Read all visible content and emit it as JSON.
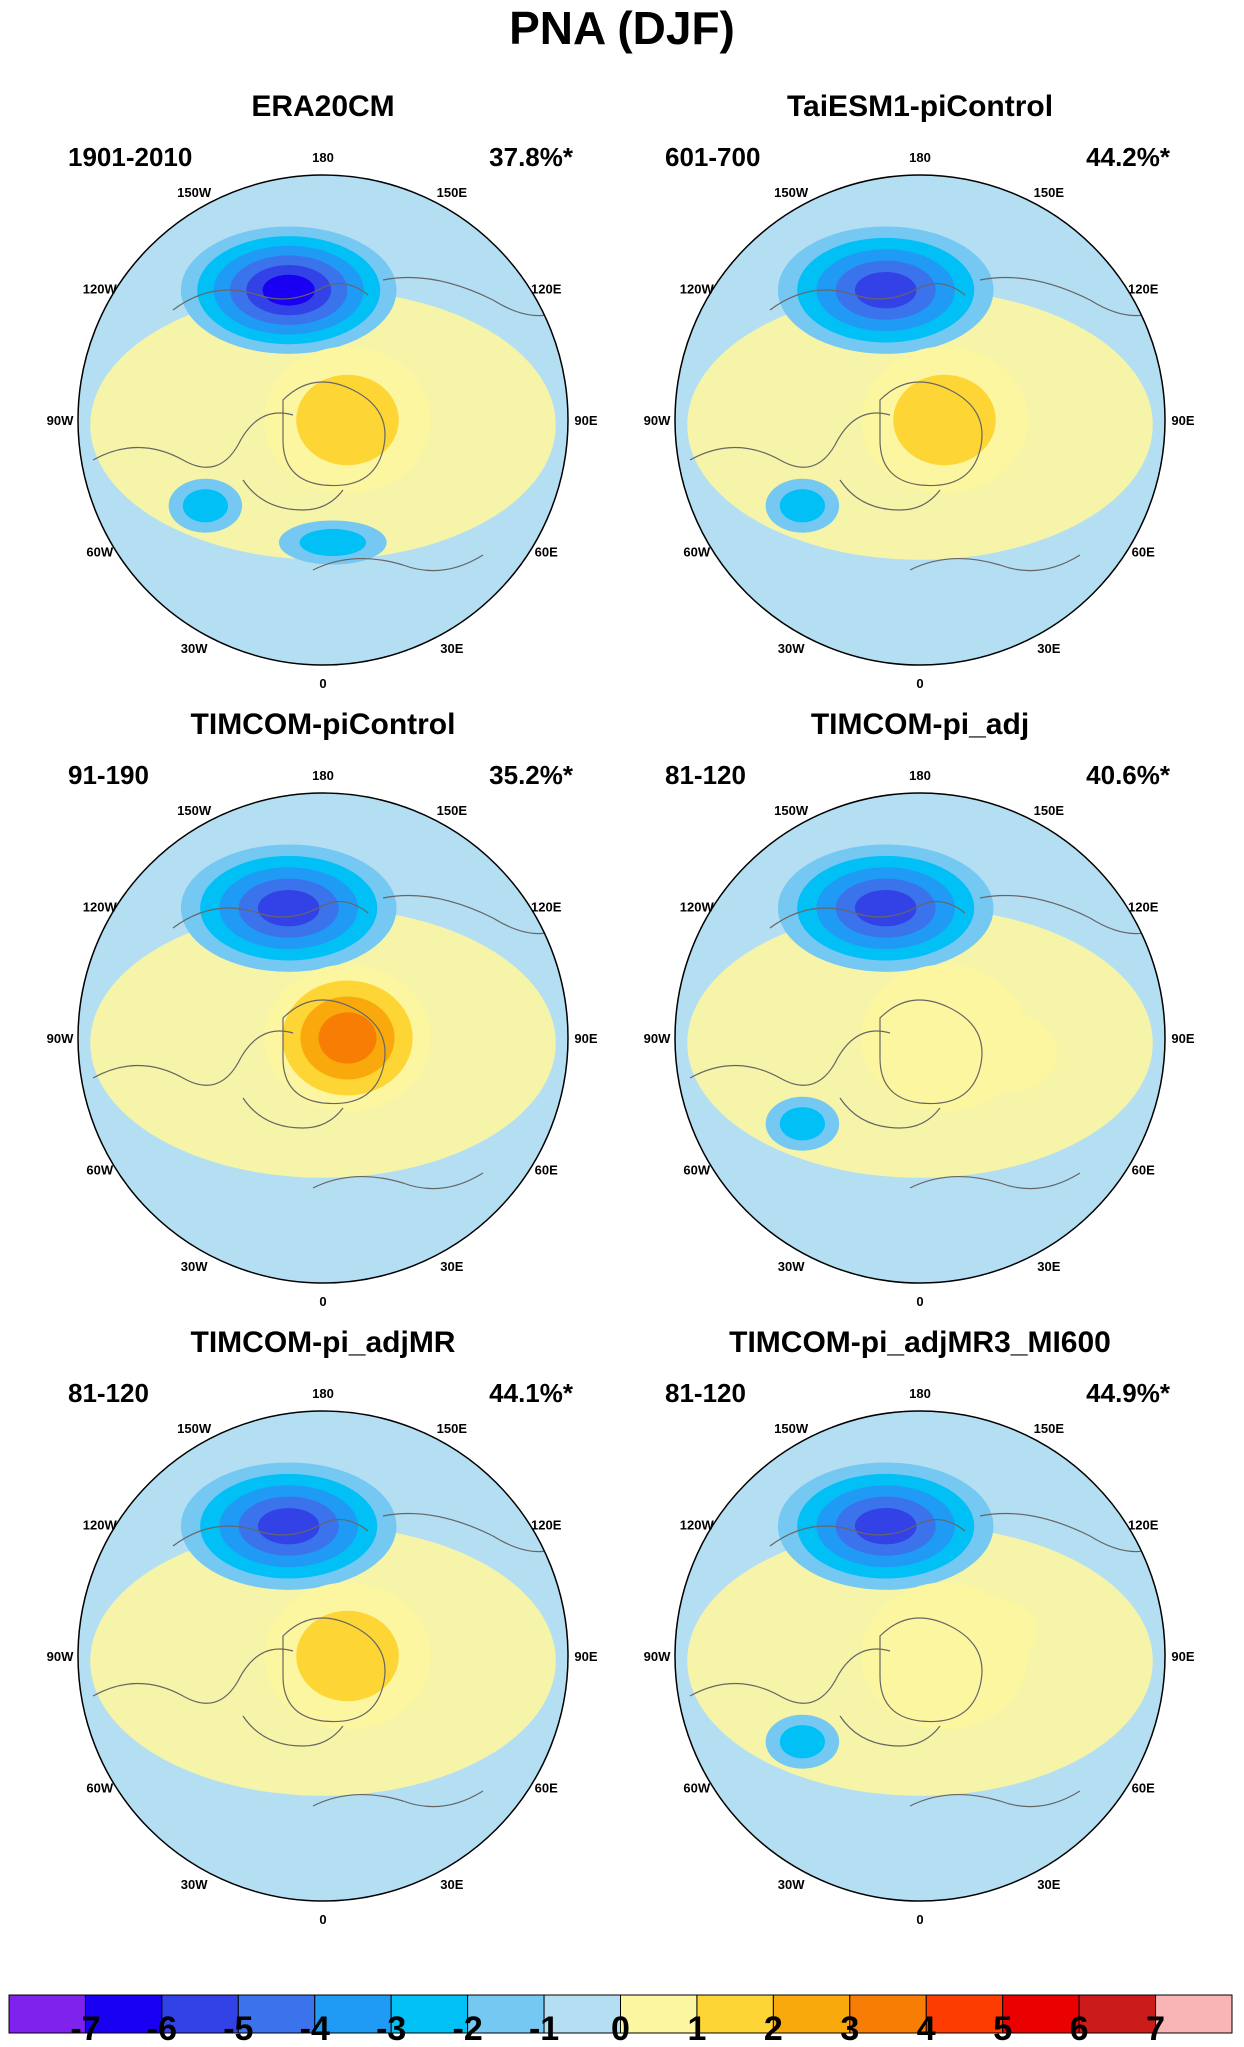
{
  "chart_data": {
    "type": "contour_map",
    "projection": "north-polar-stereographic",
    "title": "PNA (DJF)",
    "lon_labels": [
      "180",
      "150E",
      "120E",
      "90E",
      "60E",
      "30E",
      "0",
      "30W",
      "60W",
      "90W",
      "120W",
      "150W"
    ],
    "panels": [
      {
        "title": "ERA20CM",
        "period": "1901-2010",
        "variance": "37.8%*",
        "features": [
          {
            "sign": "negative",
            "center": "North Pacific / Alaska",
            "peak": -6
          },
          {
            "sign": "positive",
            "center": "Canada / Hudson Bay",
            "peak": 2
          },
          {
            "sign": "negative",
            "center": "Gulf of Mexico / SE USA",
            "peak": -2
          },
          {
            "sign": "negative",
            "center": "North Atlantic",
            "peak": -2
          }
        ]
      },
      {
        "title": "TaiESM1-piControl",
        "period": "601-700",
        "variance": "44.2%*",
        "features": [
          {
            "sign": "negative",
            "center": "North Pacific / Alaska",
            "peak": -5
          },
          {
            "sign": "positive",
            "center": "Canada / Hudson Bay",
            "peak": 2
          },
          {
            "sign": "negative",
            "center": "Gulf of Mexico / SE USA",
            "peak": -2
          }
        ]
      },
      {
        "title": "TIMCOM-piControl",
        "period": "91-190",
        "variance": "35.2%*",
        "features": [
          {
            "sign": "negative",
            "center": "North Pacific / Alaska",
            "peak": -5
          },
          {
            "sign": "positive",
            "center": "Canada / Hudson Bay",
            "peak": 4
          }
        ]
      },
      {
        "title": "TIMCOM-pi_adj",
        "period": "81-120",
        "variance": "40.6%*",
        "features": [
          {
            "sign": "negative",
            "center": "North Pacific / Alaska",
            "peak": -5
          },
          {
            "sign": "positive",
            "center": "Canada / Hudson Bay",
            "peak": 1
          },
          {
            "sign": "positive",
            "center": "NE Canada / Greenland",
            "peak": 1
          },
          {
            "sign": "negative",
            "center": "Gulf of Mexico / SE USA",
            "peak": -2
          }
        ]
      },
      {
        "title": "TIMCOM-pi_adjMR",
        "period": "81-120",
        "variance": "44.1%*",
        "features": [
          {
            "sign": "negative",
            "center": "North Pacific / Alaska",
            "peak": -5
          },
          {
            "sign": "positive",
            "center": "Canada / Hudson Bay",
            "peak": 2
          }
        ]
      },
      {
        "title": "TIMCOM-pi_adjMR3_MI600",
        "period": "81-120",
        "variance": "44.9%*",
        "features": [
          {
            "sign": "negative",
            "center": "North Pacific / Alaska",
            "peak": -5
          },
          {
            "sign": "positive",
            "center": "Canada / Hudson Bay",
            "peak": 1
          },
          {
            "sign": "positive",
            "center": "NE Canada",
            "peak": 1
          },
          {
            "sign": "negative",
            "center": "Gulf of Mexico / SE USA",
            "peak": -2
          }
        ]
      }
    ],
    "colorbar": {
      "levels": [
        -7,
        -6,
        -5,
        -4,
        -3,
        -2,
        -1,
        0,
        1,
        2,
        3,
        4,
        5,
        6,
        7
      ],
      "labels": [
        "-7",
        "-6",
        "-5",
        "-4",
        "-3",
        "-2",
        "-1",
        "0",
        "1",
        "2",
        "3",
        "4",
        "5",
        "6",
        "7"
      ],
      "colors": [
        "#7f22ee",
        "#1a00f2",
        "#3342e6",
        "#3a73ec",
        "#209bf5",
        "#00c0f5",
        "#74c8f2",
        "#b4dff3",
        "#fdf6a0",
        "#fdd535",
        "#f9a90c",
        "#f77d05",
        "#fc3c00",
        "#ea0000",
        "#cb1b1b",
        "#f9b5b5"
      ]
    }
  }
}
